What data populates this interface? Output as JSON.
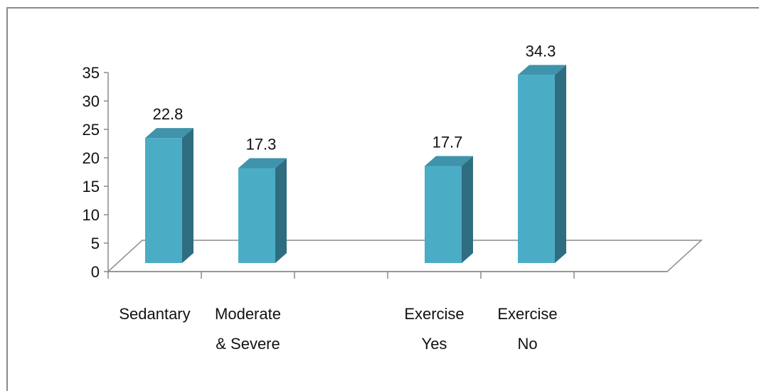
{
  "chart_data": {
    "type": "bar",
    "categories": [
      {
        "id": "sedantary",
        "lines": [
          "Sedantary"
        ]
      },
      {
        "id": "moderate-severe",
        "lines": [
          "Moderate",
          "& Severe"
        ]
      },
      {
        "id": "blank",
        "lines": []
      },
      {
        "id": "exercise-yes",
        "lines": [
          "Exercise",
          "Yes"
        ]
      },
      {
        "id": "exercise-no",
        "lines": [
          "Exercise",
          "No"
        ]
      }
    ],
    "values": [
      22.8,
      17.3,
      null,
      17.7,
      34.3
    ],
    "data_labels": [
      "22.8",
      "17.3",
      "",
      "17.7",
      "34.3"
    ],
    "yticks": [
      "0",
      "5",
      "10",
      "15",
      "20",
      "25",
      "30",
      "35"
    ],
    "ylim": [
      0,
      35
    ],
    "grid": false,
    "legend": false,
    "colors": {
      "bar_front": "#4bacc6",
      "bar_top": "#3f93aa",
      "bar_side": "#2f6d80",
      "axis": "#8a8a8a"
    }
  }
}
